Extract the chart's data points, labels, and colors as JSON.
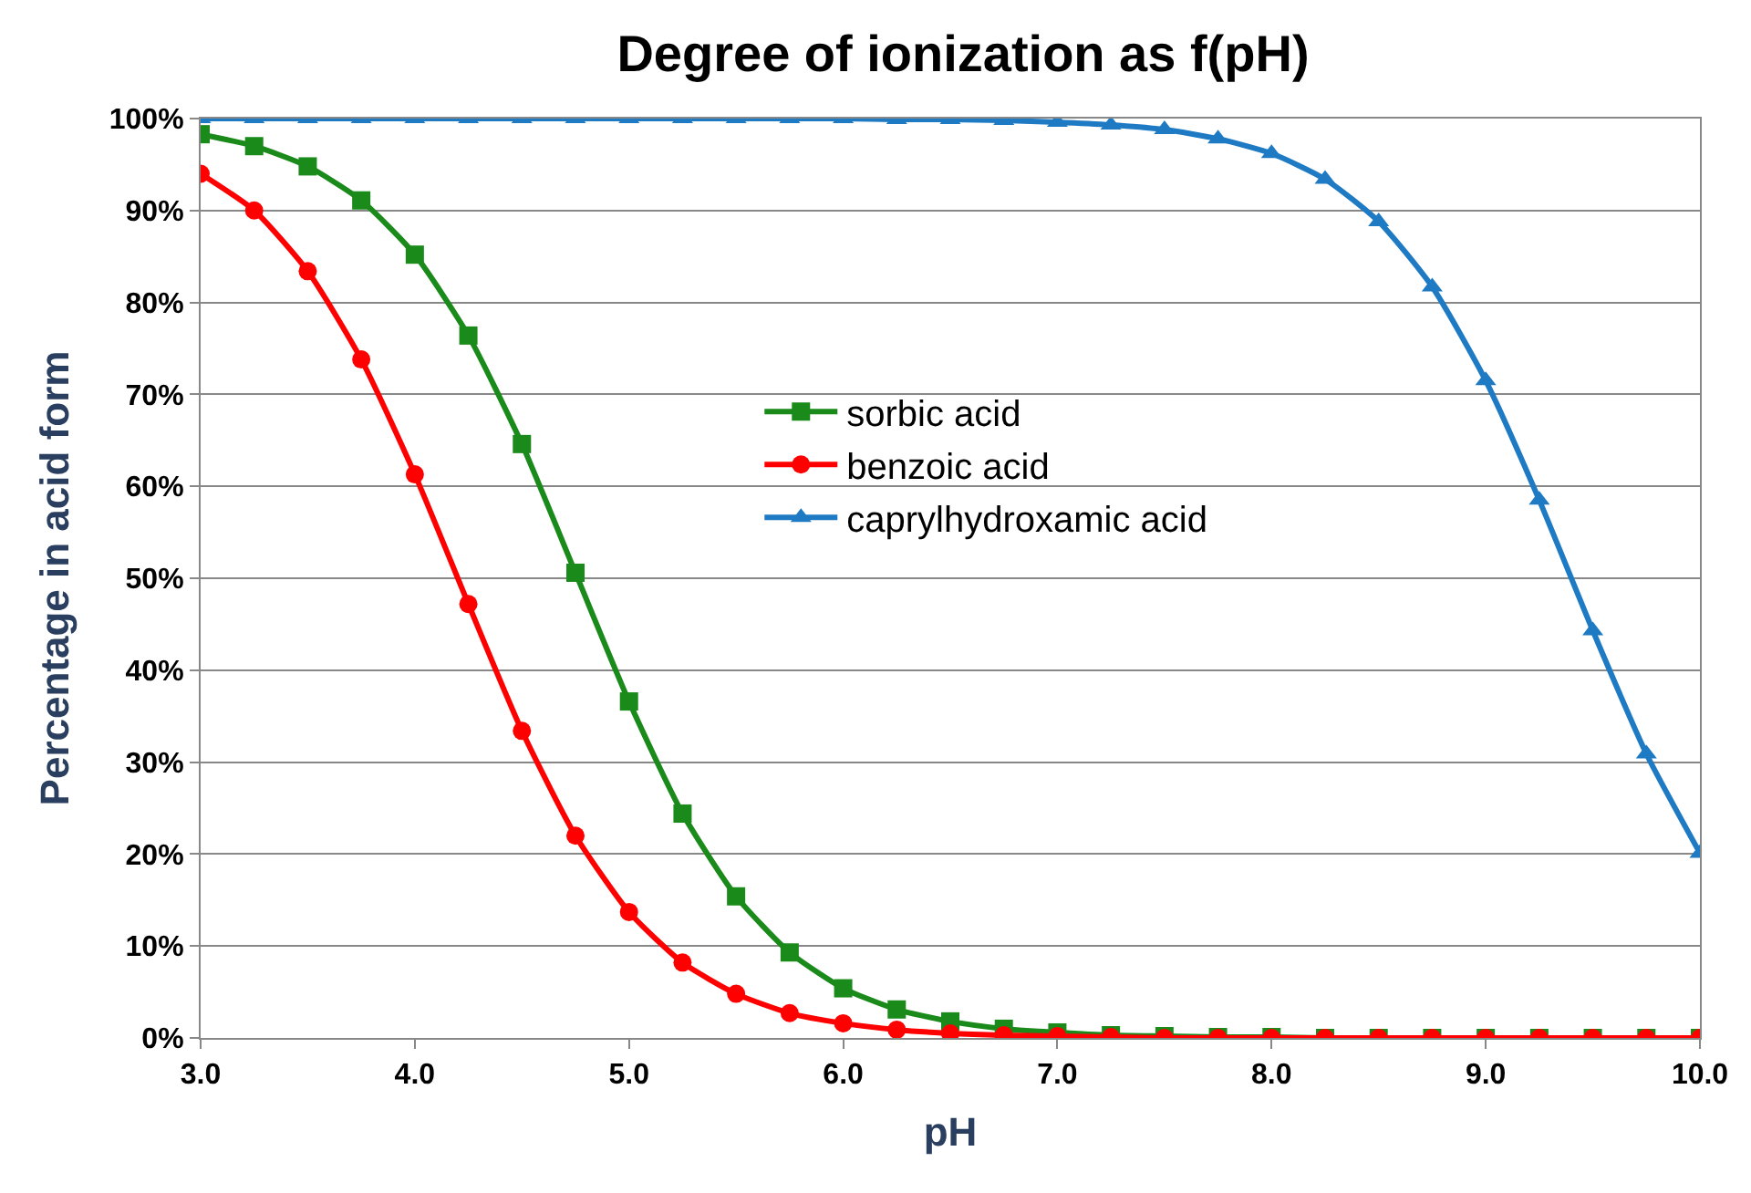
{
  "chart_data": {
    "type": "line",
    "title": "Degree of ionization as f(pH)",
    "xlabel": "pH",
    "ylabel": "Percentage in acid form",
    "x": [
      3.0,
      3.25,
      3.5,
      3.75,
      4.0,
      4.25,
      4.5,
      4.75,
      5.0,
      5.25,
      5.5,
      5.75,
      6.0,
      6.25,
      6.5,
      6.75,
      7.0,
      7.25,
      7.5,
      7.75,
      8.0,
      8.25,
      8.5,
      8.75,
      9.0,
      9.25,
      9.5,
      9.75,
      10.0
    ],
    "series": [
      {
        "name": "sorbic acid",
        "color": "#1a8a1a",
        "marker": "square",
        "values": [
          98.3,
          97,
          94.8,
          91.1,
          85.2,
          76.4,
          64.6,
          50.6,
          36.6,
          24.4,
          15.4,
          9.3,
          5.4,
          3.1,
          1.8,
          1.0,
          0.6,
          0.3,
          0.2,
          0.1,
          0.1,
          0,
          0,
          0,
          0,
          0,
          0,
          0,
          0
        ]
      },
      {
        "name": "benzoic acid",
        "color": "#ff0000",
        "marker": "circle",
        "values": [
          94,
          90,
          83.4,
          73.8,
          61.3,
          47.2,
          33.4,
          22,
          13.7,
          8.2,
          4.8,
          2.7,
          1.6,
          0.9,
          0.5,
          0.3,
          0.2,
          0.1,
          0,
          0,
          0,
          0,
          0,
          0,
          0,
          0,
          0,
          0,
          0
        ]
      },
      {
        "name": "caprylhydroxamic acid",
        "color": "#1f7ac4",
        "marker": "triangle",
        "values": [
          100,
          100,
          100,
          100,
          100,
          100,
          100,
          100,
          100,
          100,
          100,
          100,
          100,
          99.9,
          99.9,
          99.8,
          99.6,
          99.3,
          98.8,
          97.8,
          96.2,
          93.4,
          88.8,
          81.7,
          71.5,
          58.5,
          44.3,
          30.9,
          20.1
        ]
      }
    ],
    "xlim": [
      3,
      10
    ],
    "ylim": [
      0,
      100
    ],
    "xticks": [
      {
        "value": 3,
        "label": "3.0"
      },
      {
        "value": 4,
        "label": "4.0"
      },
      {
        "value": 5,
        "label": "5.0"
      },
      {
        "value": 6,
        "label": "6.0"
      },
      {
        "value": 7,
        "label": "7.0"
      },
      {
        "value": 8,
        "label": "8.0"
      },
      {
        "value": 9,
        "label": "9.0"
      },
      {
        "value": 10,
        "label": "10.0"
      }
    ],
    "yticks": [
      {
        "value": 0,
        "label": "0%"
      },
      {
        "value": 10,
        "label": "10%"
      },
      {
        "value": 20,
        "label": "20%"
      },
      {
        "value": 30,
        "label": "30%"
      },
      {
        "value": 40,
        "label": "40%"
      },
      {
        "value": 50,
        "label": "50%"
      },
      {
        "value": 60,
        "label": "60%"
      },
      {
        "value": 70,
        "label": "70%"
      },
      {
        "value": 80,
        "label": "80%"
      },
      {
        "value": 90,
        "label": "90%"
      },
      {
        "value": 100,
        "label": "100%"
      }
    ],
    "grid": "y",
    "legend": "center",
    "line_style": "solid"
  }
}
